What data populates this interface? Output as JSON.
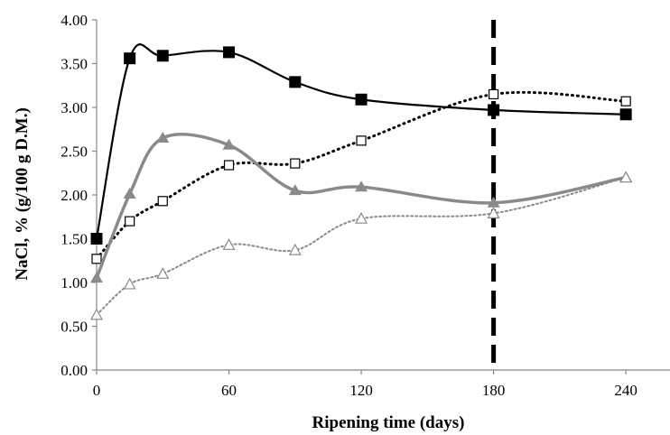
{
  "chart_data": {
    "type": "line",
    "xlabel": "Ripening time (days)",
    "ylabel": "NaCl, % (g/100 g D.M.)",
    "xlim": [
      0,
      260
    ],
    "ylim": [
      0,
      4
    ],
    "xticks": [
      0,
      60,
      120,
      180,
      240
    ],
    "xtick_labels": [
      "0",
      "60",
      "120",
      "180",
      "240"
    ],
    "yticks": [
      0,
      0.5,
      1,
      1.5,
      2,
      2.5,
      3,
      3.5,
      4
    ],
    "ytick_labels": [
      "0.00",
      "0.50",
      "1.00",
      "1.50",
      "2.00",
      "2.50",
      "3.00",
      "3.50",
      "4.00"
    ],
    "grid": false,
    "legend": "none",
    "reference_line": {
      "x": 180,
      "style": "dashed",
      "color": "#000000"
    },
    "series": [
      {
        "marker": "square-filled",
        "line": "solid",
        "color": "#000000",
        "x": [
          0,
          15,
          30,
          60,
          90,
          120,
          180,
          240
        ],
        "y": [
          1.5,
          3.56,
          3.59,
          3.63,
          3.29,
          3.09,
          2.97,
          2.92
        ]
      },
      {
        "marker": "square-open",
        "line": "dotted",
        "color": "#000000",
        "x": [
          0,
          15,
          30,
          60,
          90,
          120,
          180,
          240
        ],
        "y": [
          1.27,
          1.7,
          1.93,
          2.34,
          2.36,
          2.62,
          3.15,
          3.07
        ]
      },
      {
        "marker": "triangle-filled",
        "line": "solid",
        "color": "#8a8a8a",
        "x": [
          0,
          15,
          30,
          60,
          90,
          120,
          180,
          240
        ],
        "y": [
          1.05,
          2.01,
          2.65,
          2.57,
          2.05,
          2.09,
          1.91,
          2.2
        ]
      },
      {
        "marker": "triangle-open",
        "line": "dotted",
        "color": "#8a8a8a",
        "x": [
          0,
          15,
          30,
          60,
          90,
          120,
          180,
          240
        ],
        "y": [
          0.63,
          0.98,
          1.1,
          1.43,
          1.37,
          1.73,
          1.79,
          2.2
        ]
      }
    ]
  }
}
